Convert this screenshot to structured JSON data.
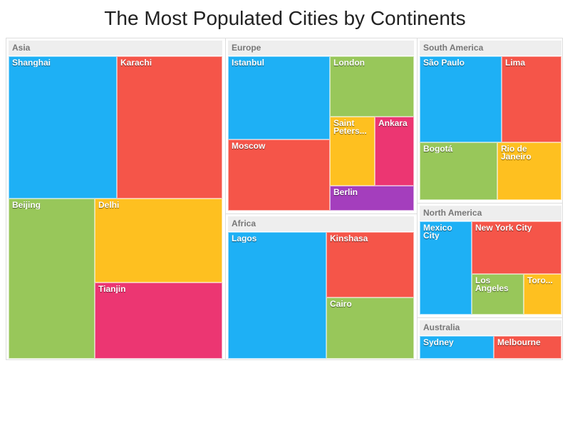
{
  "chart_data": {
    "type": "treemap",
    "title": "The Most Populated Cities by Continents",
    "groups": [
      {
        "name": "Asia",
        "cities": [
          {
            "name": "Shanghai",
            "color": "#1eb0f5"
          },
          {
            "name": "Karachi",
            "color": "#f55549"
          },
          {
            "name": "Beijing",
            "color": "#98c75a"
          },
          {
            "name": "Delhi",
            "color": "#fec020"
          },
          {
            "name": "Tianjin",
            "color": "#ec3672"
          }
        ]
      },
      {
        "name": "Europe",
        "cities": [
          {
            "name": "Istanbul",
            "color": "#1eb0f5"
          },
          {
            "name": "London",
            "color": "#98c75a"
          },
          {
            "name": "Moscow",
            "color": "#f55549"
          },
          {
            "name": "Saint Peters...",
            "color": "#fec020"
          },
          {
            "name": "Ankara",
            "color": "#ec3672"
          },
          {
            "name": "Berlin",
            "color": "#a43ebd"
          }
        ]
      },
      {
        "name": "Africa",
        "cities": [
          {
            "name": "Lagos",
            "color": "#1eb0f5"
          },
          {
            "name": "Kinshasa",
            "color": "#f55549"
          },
          {
            "name": "Cairo",
            "color": "#98c75a"
          }
        ]
      },
      {
        "name": "South America",
        "cities": [
          {
            "name": "São Paulo",
            "color": "#1eb0f5"
          },
          {
            "name": "Lima",
            "color": "#f55549"
          },
          {
            "name": "Bogotá",
            "color": "#98c75a"
          },
          {
            "name": "Rio de Janeiro",
            "color": "#fec020"
          }
        ]
      },
      {
        "name": "North America",
        "cities": [
          {
            "name": "Mexico City",
            "color": "#1eb0f5"
          },
          {
            "name": "New York City",
            "color": "#f55549"
          },
          {
            "name": "Los Angeles",
            "color": "#98c75a"
          },
          {
            "name": "Toro...",
            "color": "#fec020"
          }
        ]
      },
      {
        "name": "Australia",
        "cities": [
          {
            "name": "Sydney",
            "color": "#1eb0f5"
          },
          {
            "name": "Melbourne",
            "color": "#f55549"
          }
        ]
      }
    ]
  }
}
